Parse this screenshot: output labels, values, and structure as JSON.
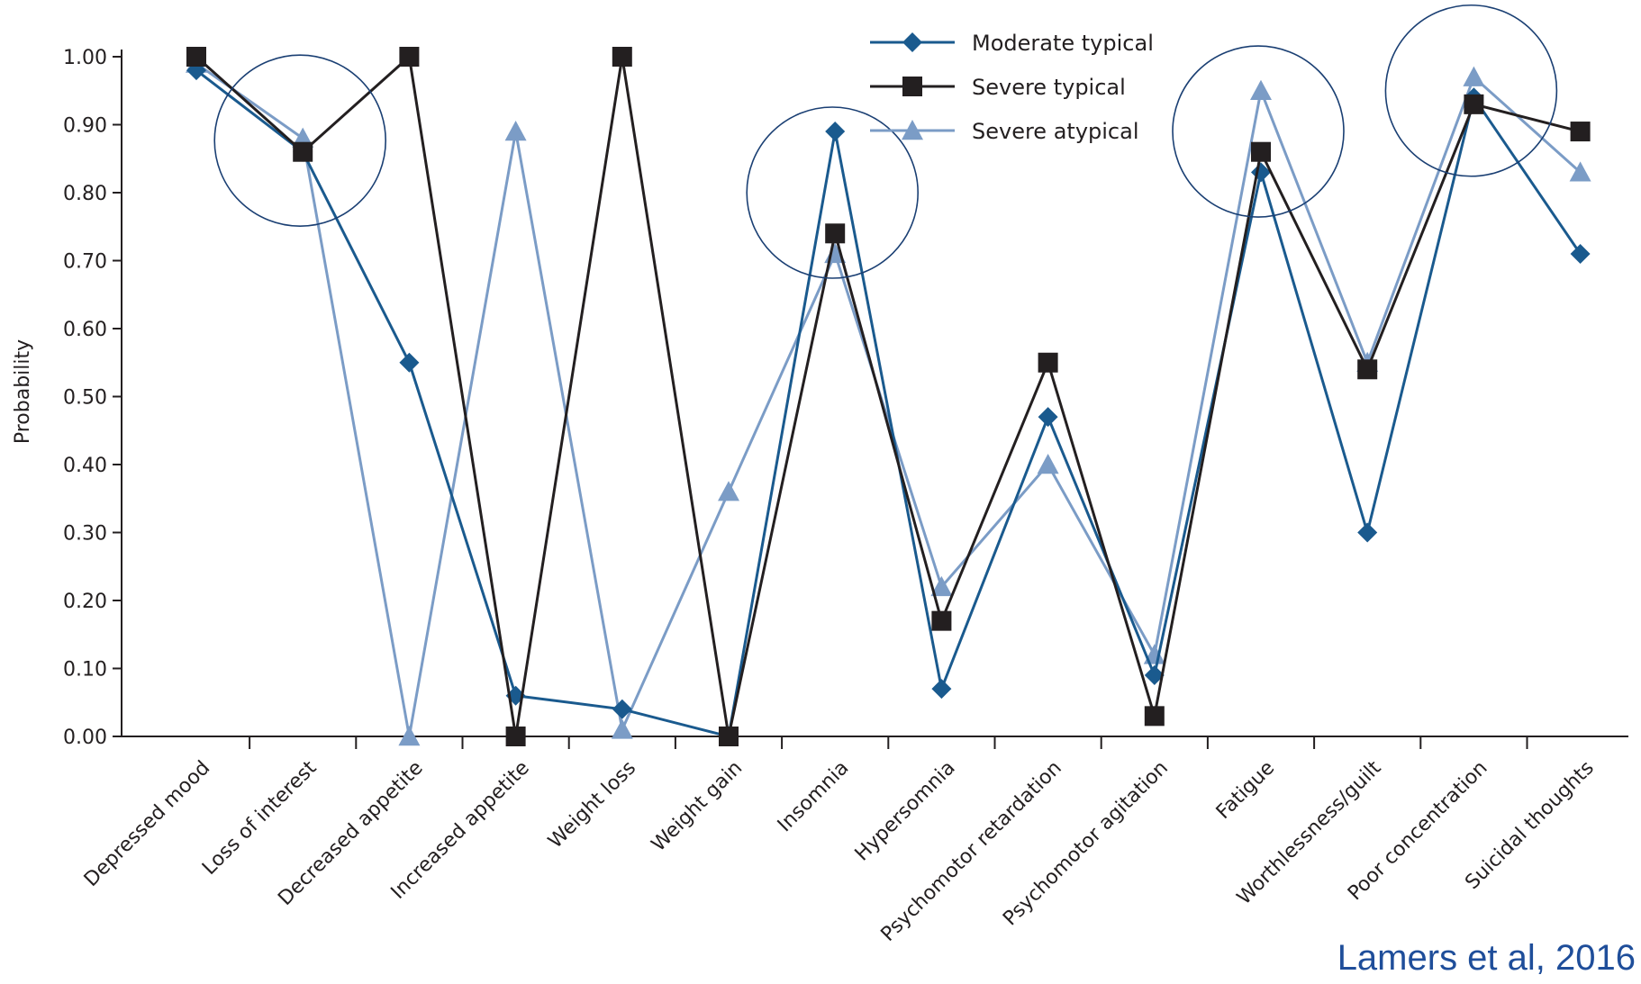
{
  "chart_data": {
    "type": "line",
    "title": "",
    "xlabel": "",
    "ylabel": "Probability",
    "ylim": [
      0,
      1
    ],
    "yticks": [
      "0.00",
      "0.10",
      "0.20",
      "0.30",
      "0.40",
      "0.50",
      "0.60",
      "0.70",
      "0.80",
      "0.90",
      "1.00"
    ],
    "categories": [
      "Depressed mood",
      "Loss of interest",
      "Decreased appetite",
      "Increased appetite",
      "Weight loss",
      "Weight gain",
      "Insomnia",
      "Hypersomnia",
      "Psychomotor retardation",
      "Psychomotor agitation",
      "Fatigue",
      "Worthlessness/guilt",
      "Poor concentration",
      "Suicidal thoughts"
    ],
    "series": [
      {
        "name": "Moderate typical",
        "marker": "diamond",
        "color": "#1a5a8e",
        "values": [
          0.98,
          0.86,
          0.55,
          0.06,
          0.04,
          0.0,
          0.89,
          0.07,
          0.47,
          0.09,
          0.83,
          0.3,
          0.94,
          0.71
        ]
      },
      {
        "name": "Severe typical",
        "marker": "square",
        "color": "#231f20",
        "values": [
          1.0,
          0.86,
          1.0,
          0.0,
          1.0,
          0.0,
          0.74,
          0.17,
          0.55,
          0.03,
          0.86,
          0.54,
          0.93,
          0.89
        ]
      },
      {
        "name": "Severe atypical",
        "marker": "triangle",
        "color": "#7b9cc6",
        "values": [
          0.99,
          0.88,
          0.0,
          0.89,
          0.01,
          0.36,
          0.71,
          0.22,
          0.4,
          0.12,
          0.95,
          0.55,
          0.97,
          0.83
        ]
      }
    ],
    "highlighted_categories": [
      "Loss of interest",
      "Insomnia",
      "Fatigue",
      "Poor concentration"
    ],
    "legend_position": "top-center",
    "grid": false
  },
  "citation": "Lamers et al, 2016"
}
